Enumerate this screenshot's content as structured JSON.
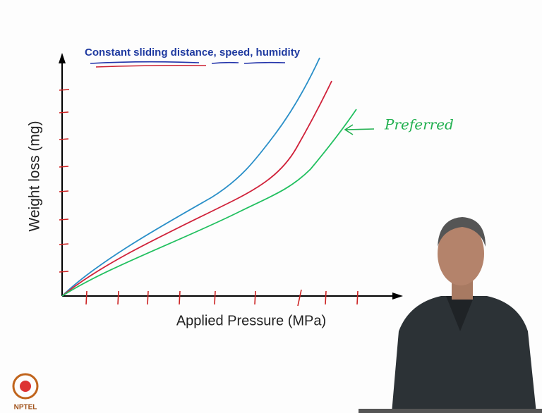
{
  "slide": {
    "title": "Constant sliding distance, speed, humidity",
    "y_axis_label": "Weight loss (mg)",
    "x_axis_label": "Applied Pressure (MPa)",
    "annotation": "Preferred",
    "logo_text": "NPTEL"
  }
}
